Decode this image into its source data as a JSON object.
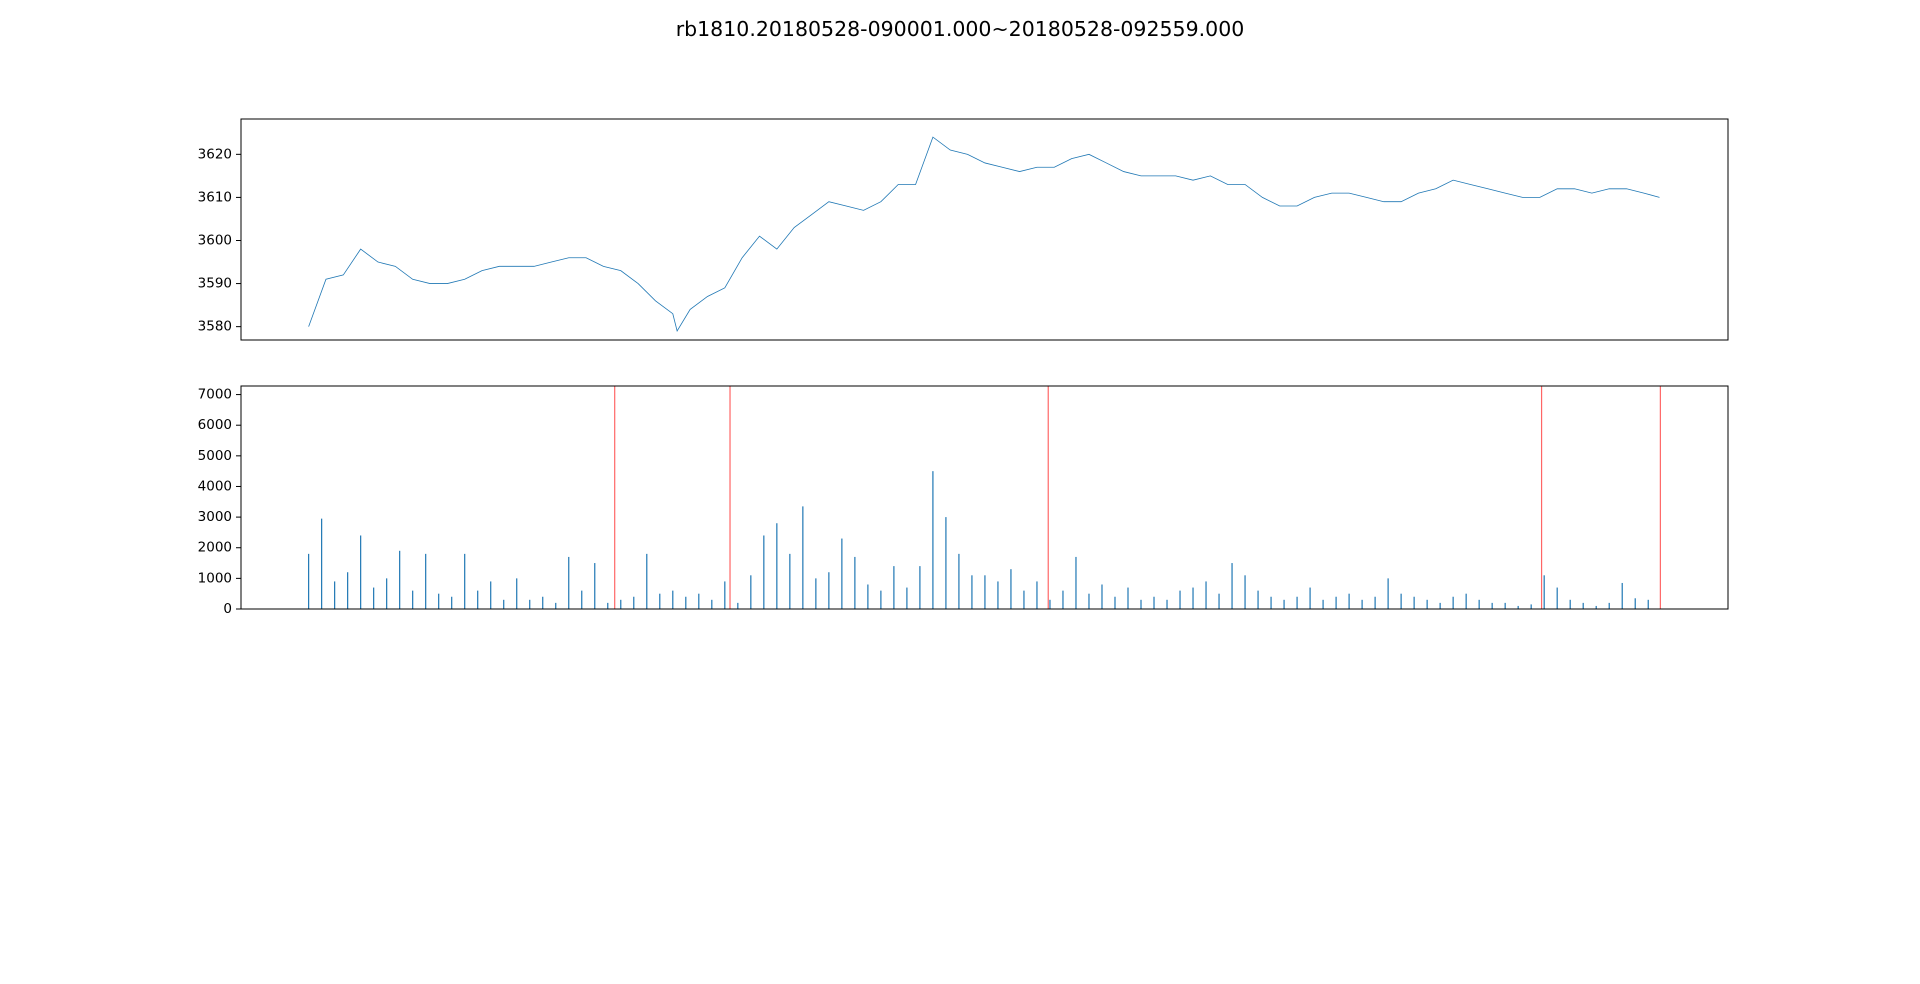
{
  "title": "rb1810.20180528-090001.000~20180528-092559.000",
  "chart_data": [
    {
      "type": "line",
      "color": "#1f77b4",
      "x": [
        0,
        20,
        40,
        60,
        80,
        100,
        120,
        140,
        160,
        180,
        200,
        220,
        240,
        260,
        280,
        300,
        320,
        340,
        360,
        380,
        400,
        420,
        425,
        440,
        460,
        480,
        500,
        520,
        540,
        560,
        580,
        600,
        620,
        640,
        660,
        680,
        700,
        720,
        740,
        760,
        780,
        800,
        820,
        840,
        860,
        880,
        900,
        920,
        940,
        960,
        980,
        1000,
        1020,
        1040,
        1060,
        1080,
        1100,
        1120,
        1140,
        1160,
        1180,
        1200,
        1220,
        1240,
        1260,
        1280,
        1300,
        1320,
        1340,
        1360,
        1380,
        1400,
        1420,
        1440,
        1460,
        1480,
        1500,
        1520,
        1540,
        1558
      ],
      "values": [
        3580,
        3591,
        3592,
        3598,
        3595,
        3594,
        3591,
        3590,
        3590,
        3591,
        3593,
        3594,
        3594,
        3594,
        3595,
        3596,
        3596,
        3594,
        3593,
        3590,
        3586,
        3583,
        3579,
        3584,
        3587,
        3589,
        3596,
        3601,
        3598,
        3603,
        3606,
        3609,
        3608,
        3607,
        3609,
        3613,
        3613,
        3624,
        3621,
        3620,
        3618,
        3617,
        3616,
        3617,
        3617,
        3619,
        3620,
        3618,
        3616,
        3615,
        3615,
        3615,
        3614,
        3615,
        3613,
        3613,
        3610,
        3608,
        3608,
        3610,
        3611,
        3611,
        3610,
        3609,
        3609,
        3611,
        3612,
        3614,
        3613,
        3612,
        3611,
        3610,
        3610,
        3612,
        3612,
        3611,
        3612,
        3612,
        3611,
        3610
      ],
      "xlim": [
        -78,
        1637
      ],
      "ylim": [
        3576.9,
        3628.2
      ],
      "yticks": [
        3580,
        3590,
        3600,
        3610,
        3620
      ]
    },
    {
      "type": "bar",
      "color": "#1f77b4",
      "x": [
        0,
        15,
        30,
        45,
        60,
        75,
        90,
        105,
        120,
        135,
        150,
        165,
        180,
        195,
        210,
        225,
        240,
        255,
        270,
        285,
        300,
        315,
        330,
        345,
        360,
        375,
        390,
        405,
        420,
        435,
        450,
        465,
        480,
        495,
        510,
        525,
        540,
        555,
        570,
        585,
        600,
        615,
        630,
        645,
        660,
        675,
        690,
        705,
        720,
        735,
        750,
        765,
        780,
        795,
        810,
        825,
        840,
        855,
        870,
        885,
        900,
        915,
        930,
        945,
        960,
        975,
        990,
        1005,
        1020,
        1035,
        1050,
        1065,
        1080,
        1095,
        1110,
        1125,
        1140,
        1155,
        1170,
        1185,
        1200,
        1215,
        1230,
        1245,
        1260,
        1275,
        1290,
        1305,
        1320,
        1335,
        1350,
        1365,
        1380,
        1395,
        1410,
        1425,
        1440,
        1455,
        1470,
        1485,
        1500,
        1515,
        1530,
        1545
      ],
      "values": [
        1800,
        2950,
        900,
        1200,
        2400,
        700,
        1000,
        1900,
        600,
        1800,
        500,
        400,
        1800,
        600,
        900,
        300,
        1000,
        300,
        400,
        200,
        1700,
        600,
        1500,
        200,
        300,
        400,
        1800,
        500,
        600,
        400,
        500,
        300,
        900,
        200,
        1100,
        2400,
        2800,
        1800,
        3350,
        1000,
        1200,
        2300,
        1700,
        800,
        600,
        1400,
        700,
        1400,
        4500,
        3000,
        1800,
        1100,
        1100,
        900,
        1300,
        600,
        900,
        300,
        600,
        1700,
        500,
        800,
        400,
        700,
        300,
        400,
        300,
        600,
        700,
        900,
        500,
        1500,
        1100,
        600,
        400,
        300,
        400,
        700,
        300,
        400,
        500,
        300,
        400,
        1000,
        500,
        400,
        300,
        200,
        400,
        500,
        300,
        200,
        200,
        100,
        150,
        1100,
        700,
        300,
        200,
        100,
        200,
        850,
        350,
        300
      ],
      "vlines": {
        "x": [
          353,
          486,
          853,
          1422,
          1559
        ],
        "color": "#ff0000"
      },
      "xlim": [
        -78,
        1637
      ],
      "ylim": [
        0,
        7280
      ],
      "yticks": [
        0,
        1000,
        2000,
        3000,
        4000,
        5000,
        6000,
        7000
      ]
    }
  ]
}
